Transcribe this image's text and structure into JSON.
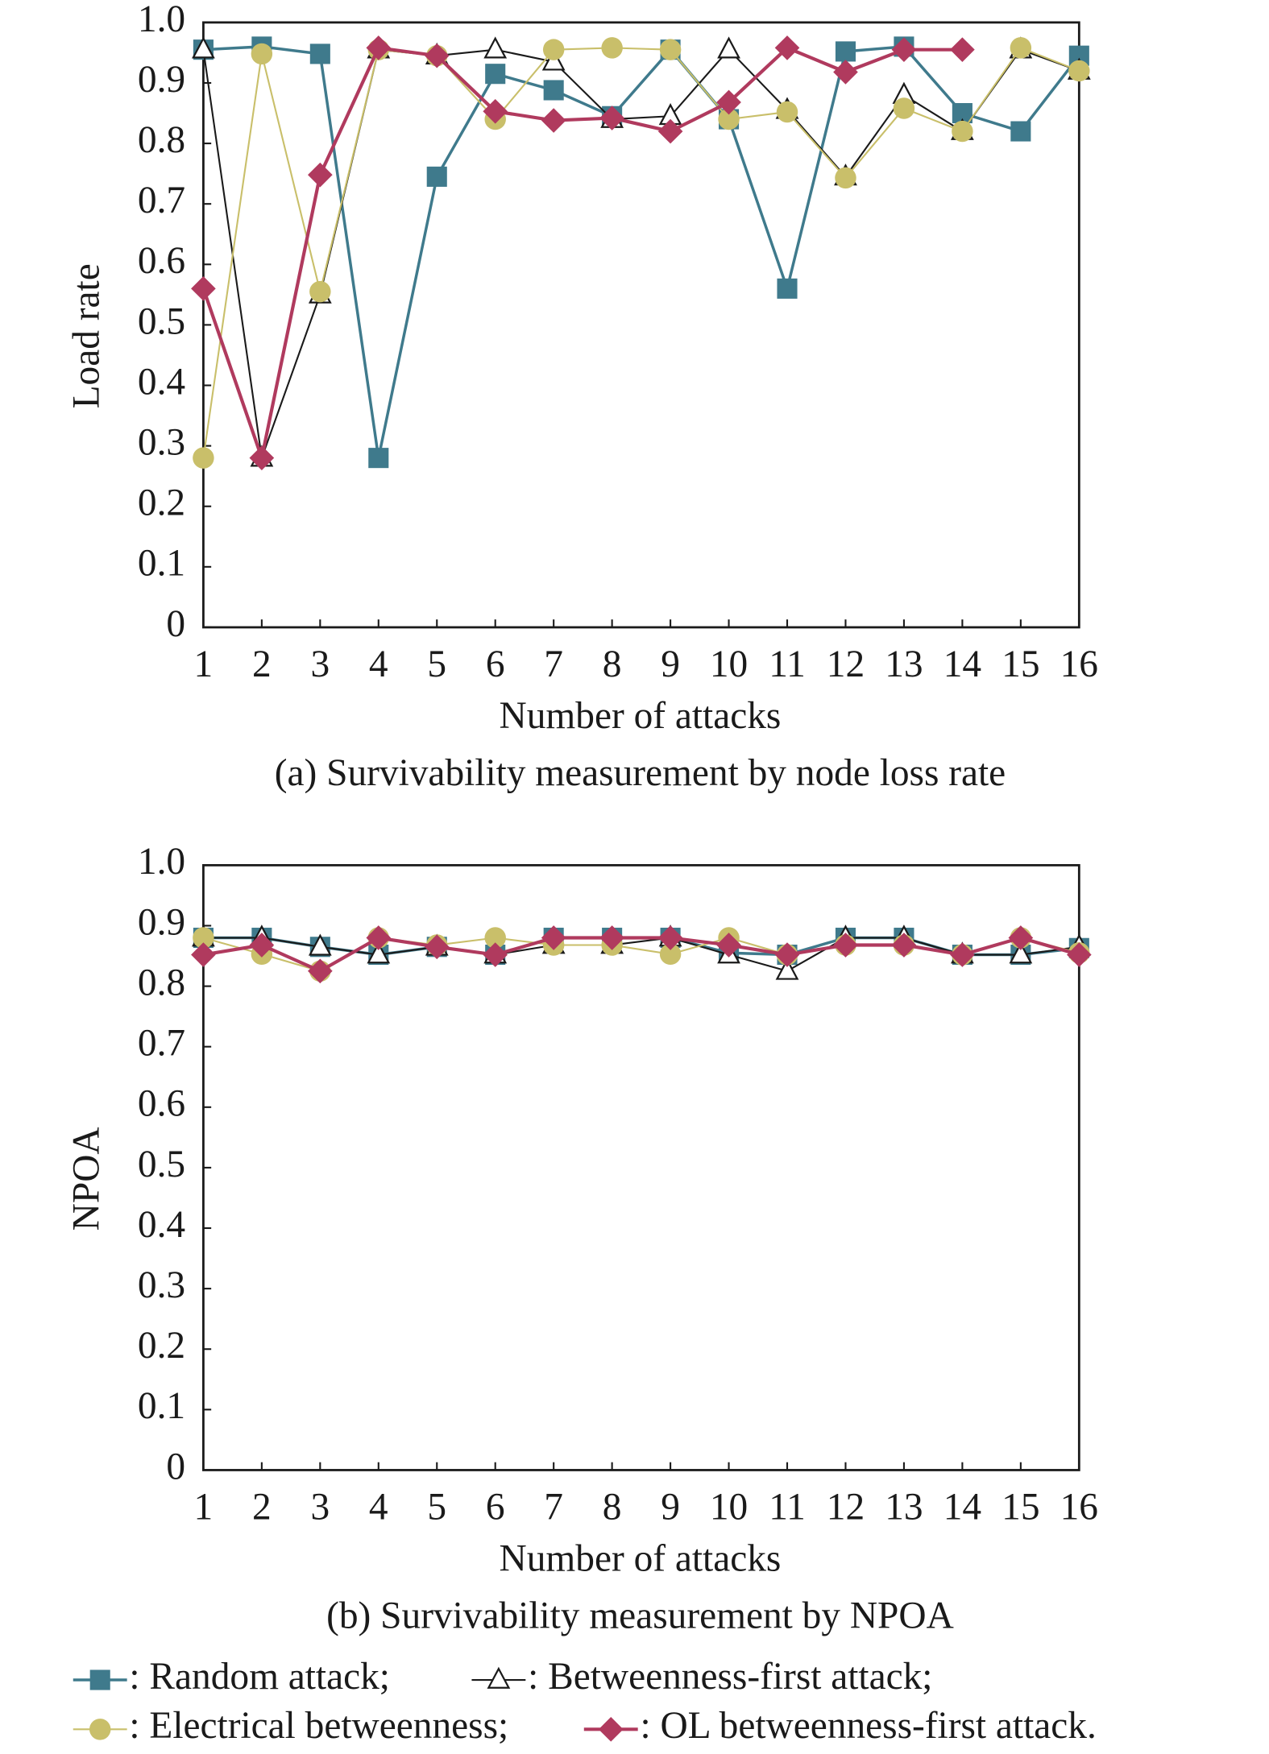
{
  "chart_data": [
    {
      "type": "line",
      "caption": "(a) Survivability measurement by node loss rate",
      "x_label": "Number of attacks",
      "y_label": "Load rate",
      "x": [
        1,
        2,
        3,
        4,
        5,
        6,
        7,
        8,
        9,
        10,
        11,
        12,
        13,
        14,
        15,
        16
      ],
      "xlim": [
        1,
        16
      ],
      "xticks": [
        1,
        2,
        3,
        4,
        5,
        6,
        7,
        8,
        9,
        10,
        11,
        12,
        13,
        14,
        15,
        16
      ],
      "ylim": [
        0,
        1
      ],
      "yticks": [
        0,
        0.1,
        0.2,
        0.3,
        0.4,
        0.5,
        0.6,
        0.7,
        0.8,
        0.9,
        {
          "value": 1,
          "label": "1.0"
        }
      ],
      "series": [
        {
          "name": ": Random attack;",
          "color": "#3f7a8c",
          "marker": "square",
          "values": [
            0.955,
            0.96,
            0.948,
            0.28,
            0.745,
            0.915,
            0.888,
            0.845,
            0.955,
            0.84,
            0.56,
            0.952,
            0.96,
            0.85,
            0.82,
            0.945
          ]
        },
        {
          "name": ": Betweenness-first attack;",
          "color": "#1a1a1a",
          "marker": "triangle",
          "values": [
            0.955,
            0.28,
            0.55,
            0.955,
            0.945,
            0.955,
            0.935,
            0.84,
            0.845,
            0.955,
            0.855,
            0.745,
            0.88,
            0.82,
            0.955,
            0.92
          ]
        },
        {
          "name": ": Electrical betweenness;",
          "color": "#c9bf6a",
          "marker": "circle",
          "values": [
            0.28,
            0.948,
            0.555,
            0.955,
            0.945,
            0.84,
            0.955,
            0.958,
            0.955,
            0.84,
            0.852,
            0.743,
            0.858,
            0.82,
            0.958,
            0.92
          ]
        },
        {
          "name": ": OL betweenness-first attack.",
          "color": "#b03a5e",
          "marker": "diamond",
          "values": [
            0.56,
            0.28,
            0.748,
            0.958,
            0.945,
            0.853,
            0.838,
            0.842,
            0.82,
            0.868,
            0.958,
            0.918,
            0.955,
            0.955,
            null,
            null
          ]
        }
      ]
    },
    {
      "type": "line",
      "caption": "(b) Survivability measurement by NPOA",
      "x_label": "Number of attacks",
      "y_label": "NPOA",
      "x": [
        1,
        2,
        3,
        4,
        5,
        6,
        7,
        8,
        9,
        10,
        11,
        12,
        13,
        14,
        15,
        16
      ],
      "xlim": [
        1,
        16
      ],
      "xticks": [
        1,
        2,
        3,
        4,
        5,
        6,
        7,
        8,
        9,
        10,
        11,
        12,
        13,
        14,
        15,
        16
      ],
      "ylim": [
        0,
        1
      ],
      "yticks": [
        0,
        0.1,
        0.2,
        0.3,
        0.4,
        0.5,
        0.6,
        0.7,
        0.8,
        0.9,
        {
          "value": 1,
          "label": "1.0"
        }
      ],
      "series": [
        {
          "color": "#3f7a8c",
          "marker": "square",
          "values": [
            0.88,
            0.88,
            0.865,
            0.852,
            0.865,
            0.852,
            0.88,
            0.88,
            0.88,
            0.855,
            0.852,
            0.88,
            0.88,
            0.852,
            0.852,
            0.863
          ]
        },
        {
          "color": "#1a1a1a",
          "marker": "triangle",
          "values": [
            0.88,
            0.88,
            0.865,
            0.852,
            0.865,
            0.852,
            0.868,
            0.868,
            0.88,
            0.852,
            0.825,
            0.88,
            0.88,
            0.852,
            0.852,
            0.865
          ]
        },
        {
          "color": "#c9bf6a",
          "marker": "circle",
          "values": [
            0.88,
            0.853,
            0.825,
            0.88,
            0.868,
            0.88,
            0.868,
            0.868,
            0.853,
            0.88,
            0.852,
            0.868,
            0.868,
            0.852,
            0.88,
            0.855
          ]
        },
        {
          "color": "#b03a5e",
          "marker": "diamond",
          "values": [
            0.852,
            0.868,
            0.825,
            0.88,
            0.865,
            0.852,
            0.88,
            0.88,
            0.88,
            0.868,
            0.852,
            0.868,
            0.868,
            0.852,
            0.88,
            0.852
          ]
        }
      ]
    }
  ]
}
